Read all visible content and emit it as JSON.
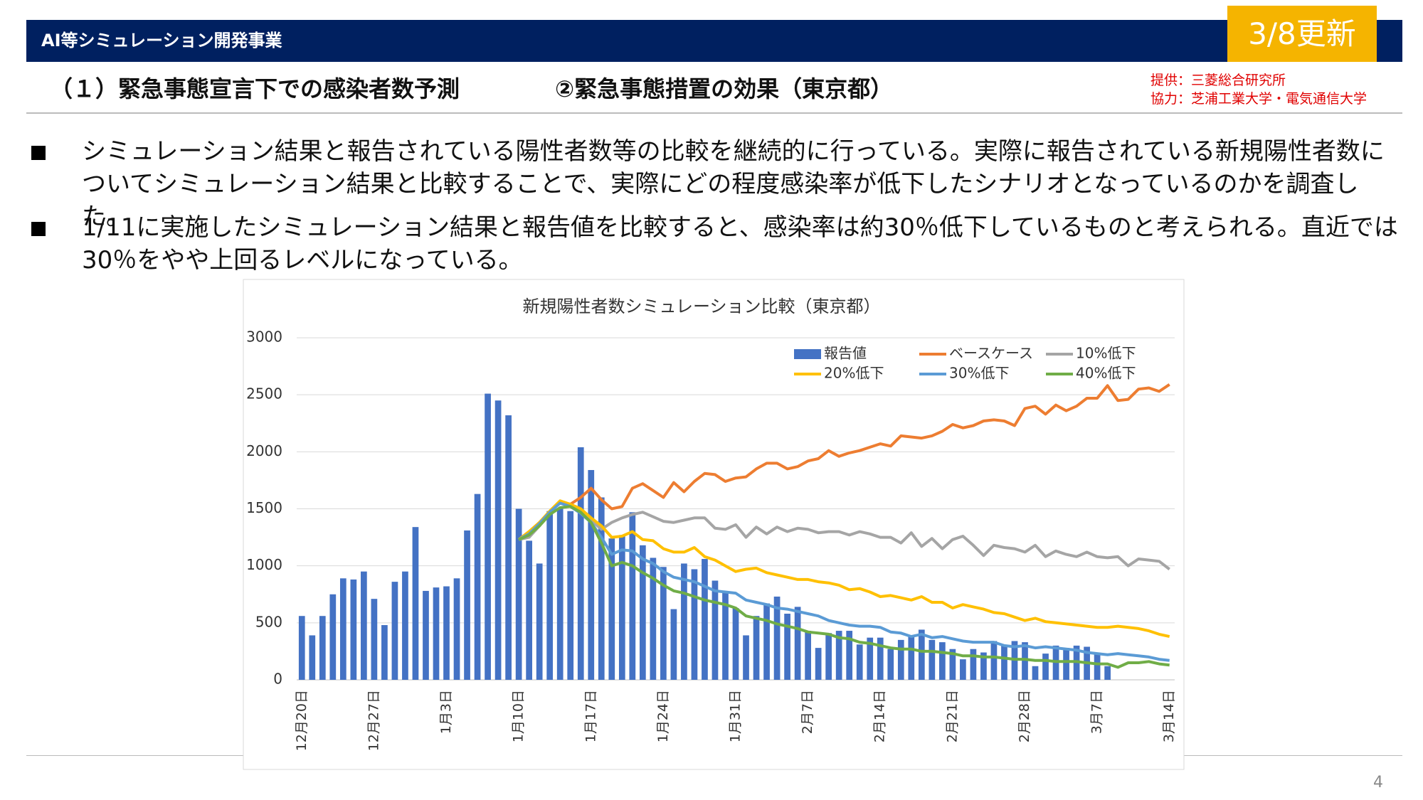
{
  "header": {
    "title": "AI等シミュレーション開発事業",
    "badge": "3/8更新",
    "subtitle_1": "（１）緊急事態宣言下での感染者数予測",
    "subtitle_2": "②緊急事態措置の効果（東京都）",
    "credit_1": "提供：三菱総合研究所",
    "credit_2": "協力：芝浦工業大学・電気通信大学"
  },
  "bullets": [
    "シミュレーション結果と報告されている陽性者数等の比較を継続的に行っている。実際に報告されている新規陽性者数についてシミュレーション結果と比較することで、実際にどの程度感染率が低下したシナリオとなっているのかを調査した。",
    "1/11に実施したシミュレーション結果と報告値を比較すると、感染率は約30％低下しているものと考えられる。直近では30％をやや上回るレベルになっている。"
  ],
  "page_number": "4",
  "chart_data": {
    "type": "bar",
    "title": "新規陽性者数シミュレーション比較（東京都）",
    "categories": [
      "12月20日",
      null,
      null,
      null,
      null,
      null,
      null,
      "12月27日",
      null,
      null,
      null,
      null,
      null,
      null,
      "1月3日",
      null,
      null,
      null,
      null,
      null,
      null,
      "1月10日",
      null,
      null,
      null,
      null,
      null,
      null,
      "1月17日",
      null,
      null,
      null,
      null,
      null,
      null,
      "1月24日",
      null,
      null,
      null,
      null,
      null,
      null,
      "1月31日",
      null,
      null,
      null,
      null,
      null,
      null,
      "2月7日",
      null,
      null,
      null,
      null,
      null,
      null,
      "2月14日",
      null,
      null,
      null,
      null,
      null,
      null,
      "2月21日",
      null,
      null,
      null,
      null,
      null,
      null,
      "2月28日",
      null,
      null,
      null,
      null,
      null,
      null,
      "3月7日",
      null,
      null,
      null,
      null,
      null,
      null,
      "3月14日"
    ],
    "ylim": [
      0,
      3000
    ],
    "yticks": [
      0,
      500,
      1000,
      1500,
      2000,
      2500,
      3000
    ],
    "grid": true,
    "legend": "top-right",
    "series": [
      {
        "name": "報告値",
        "type": "bar",
        "color": "#4472c4",
        "values": [
          560,
          390,
          560,
          750,
          890,
          880,
          950,
          710,
          480,
          860,
          950,
          1340,
          780,
          810,
          820,
          890,
          1310,
          1630,
          2510,
          2450,
          2320,
          1500,
          1220,
          1020,
          1480,
          1500,
          1480,
          2040,
          1840,
          1600,
          1240,
          1270,
          1470,
          1180,
          1070,
          990,
          620,
          1020,
          970,
          1060,
          870,
          770,
          630,
          390,
          560,
          670,
          730,
          580,
          640,
          430,
          280,
          410,
          430,
          430,
          310,
          370,
          370,
          270,
          350,
          380,
          440,
          350,
          330,
          270,
          180,
          270,
          240,
          340,
          300,
          340,
          330,
          120,
          230,
          300,
          280,
          300,
          290,
          240,
          120,
          null,
          null,
          null,
          null,
          null,
          null
        ]
      },
      {
        "name": "ベースケース",
        "type": "line",
        "color": "#ed7d31",
        "values": [
          null,
          null,
          null,
          null,
          null,
          null,
          null,
          null,
          null,
          null,
          null,
          null,
          null,
          null,
          null,
          null,
          null,
          null,
          null,
          null,
          null,
          1230,
          1300,
          1380,
          1470,
          1560,
          1540,
          1600,
          1680,
          1580,
          1500,
          1520,
          1680,
          1720,
          1660,
          1600,
          1730,
          1650,
          1740,
          1810,
          1800,
          1740,
          1770,
          1780,
          1850,
          1900,
          1900,
          1850,
          1870,
          1920,
          1940,
          2010,
          1960,
          1990,
          2010,
          2040,
          2070,
          2050,
          2140,
          2130,
          2120,
          2140,
          2180,
          2240,
          2210,
          2230,
          2270,
          2280,
          2270,
          2230,
          2380,
          2400,
          2330,
          2410,
          2360,
          2400,
          2470,
          2470,
          2580,
          2450,
          2460,
          2550,
          2560,
          2530,
          2590
        ]
      },
      {
        "name": "10%低下",
        "type": "line",
        "color": "#a5a5a5",
        "values": [
          null,
          null,
          null,
          null,
          null,
          null,
          null,
          null,
          null,
          null,
          null,
          null,
          null,
          null,
          null,
          null,
          null,
          null,
          null,
          null,
          null,
          1230,
          1250,
          1350,
          1470,
          1560,
          1540,
          1480,
          1400,
          1320,
          1380,
          1420,
          1450,
          1470,
          1430,
          1390,
          1380,
          1400,
          1420,
          1420,
          1330,
          1320,
          1360,
          1250,
          1340,
          1280,
          1340,
          1300,
          1330,
          1320,
          1290,
          1300,
          1300,
          1270,
          1300,
          1280,
          1250,
          1250,
          1200,
          1290,
          1170,
          1240,
          1150,
          1230,
          1260,
          1180,
          1090,
          1180,
          1160,
          1150,
          1120,
          1180,
          1080,
          1130,
          1100,
          1080,
          1120,
          1080,
          1070,
          1080,
          1000,
          1060,
          1050,
          1040,
          970
        ]
      },
      {
        "name": "20%低下",
        "type": "line",
        "color": "#ffc000",
        "values": [
          null,
          null,
          null,
          null,
          null,
          null,
          null,
          null,
          null,
          null,
          null,
          null,
          null,
          null,
          null,
          null,
          null,
          null,
          null,
          null,
          null,
          1230,
          1300,
          1380,
          1480,
          1570,
          1540,
          1500,
          1420,
          1350,
          1250,
          1260,
          1300,
          1230,
          1220,
          1150,
          1120,
          1120,
          1160,
          1080,
          1050,
          1000,
          950,
          970,
          980,
          940,
          920,
          900,
          880,
          880,
          860,
          850,
          830,
          790,
          800,
          770,
          730,
          740,
          720,
          700,
          730,
          680,
          680,
          630,
          660,
          640,
          620,
          590,
          580,
          550,
          520,
          540,
          510,
          500,
          490,
          480,
          470,
          460,
          460,
          470,
          460,
          450,
          430,
          400,
          380
        ]
      },
      {
        "name": "30%低下",
        "type": "line",
        "color": "#5b9bd5",
        "values": [
          null,
          null,
          null,
          null,
          null,
          null,
          null,
          null,
          null,
          null,
          null,
          null,
          null,
          null,
          null,
          null,
          null,
          null,
          null,
          null,
          null,
          1230,
          1280,
          1370,
          1470,
          1550,
          1520,
          1460,
          1380,
          1250,
          1100,
          1140,
          1130,
          1060,
          1020,
          950,
          900,
          880,
          860,
          820,
          780,
          770,
          760,
          700,
          680,
          660,
          630,
          620,
          600,
          580,
          560,
          520,
          500,
          480,
          470,
          470,
          460,
          420,
          410,
          380,
          400,
          370,
          380,
          360,
          340,
          330,
          330,
          330,
          300,
          290,
          300,
          280,
          290,
          280,
          270,
          260,
          240,
          230,
          220,
          230,
          220,
          210,
          200,
          180,
          170
        ]
      },
      {
        "name": "40%低下",
        "type": "line",
        "color": "#70ad47",
        "values": [
          null,
          null,
          null,
          null,
          null,
          null,
          null,
          null,
          null,
          null,
          null,
          null,
          null,
          null,
          null,
          null,
          null,
          null,
          null,
          null,
          null,
          1230,
          1270,
          1350,
          1450,
          1510,
          1520,
          1470,
          1380,
          1200,
          1000,
          1030,
          1000,
          940,
          890,
          830,
          780,
          760,
          730,
          700,
          680,
          660,
          630,
          560,
          540,
          520,
          490,
          470,
          450,
          420,
          410,
          400,
          370,
          360,
          330,
          320,
          300,
          280,
          270,
          270,
          250,
          250,
          240,
          230,
          210,
          210,
          200,
          200,
          190,
          180,
          180,
          170,
          170,
          160,
          160,
          160,
          150,
          140,
          140,
          110,
          150,
          150,
          160,
          140,
          130
        ]
      }
    ]
  }
}
